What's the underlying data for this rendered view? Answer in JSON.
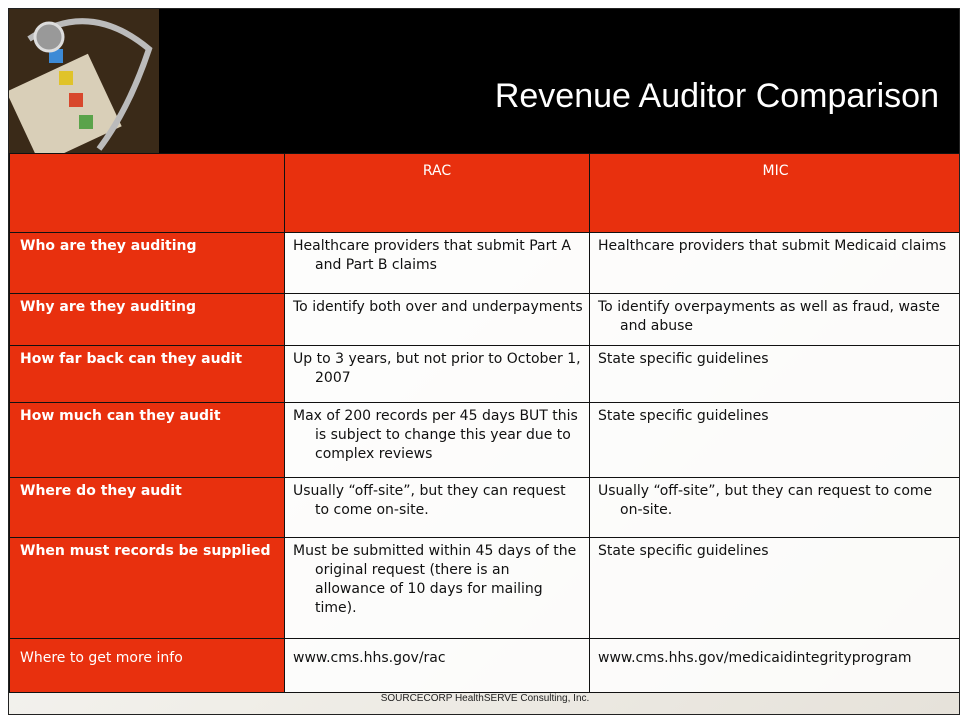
{
  "header": {
    "title": "Revenue Auditor Comparison"
  },
  "table": {
    "columns": [
      "RAC",
      "MIC"
    ],
    "rows": [
      [
        "Who are they auditing",
        "Healthcare providers that submit Part A and Part B claims",
        "Healthcare providers that submit Medicaid claims"
      ],
      [
        "Why are they auditing",
        "To identify both over and underpayments",
        "To identify overpayments as well as fraud, waste and abuse"
      ],
      [
        "How far back can they audit",
        "Up to 3 years, but not prior to October 1, 2007",
        "State specific guidelines"
      ],
      [
        "How much can they audit",
        "Max of 200 records per 45 days BUT this is subject to change this year due to complex reviews",
        "State specific guidelines"
      ],
      [
        "Where do they audit",
        "Usually “off-site”, but they can request to come on-site.",
        "Usually “off-site”, but they can request to come on-site."
      ],
      [
        "When must records be supplied",
        "Must be submitted within 45 days of the original request (there is an allowance of 10 days for mailing time).",
        "State specific guidelines"
      ],
      [
        "Where to get more info",
        "www.cms.hhs.gov/rac",
        "www.cms.hhs.gov/medicaidintegrityprogram"
      ]
    ]
  },
  "footer": "SOURCECORP HealthSERVE Consulting, Inc."
}
